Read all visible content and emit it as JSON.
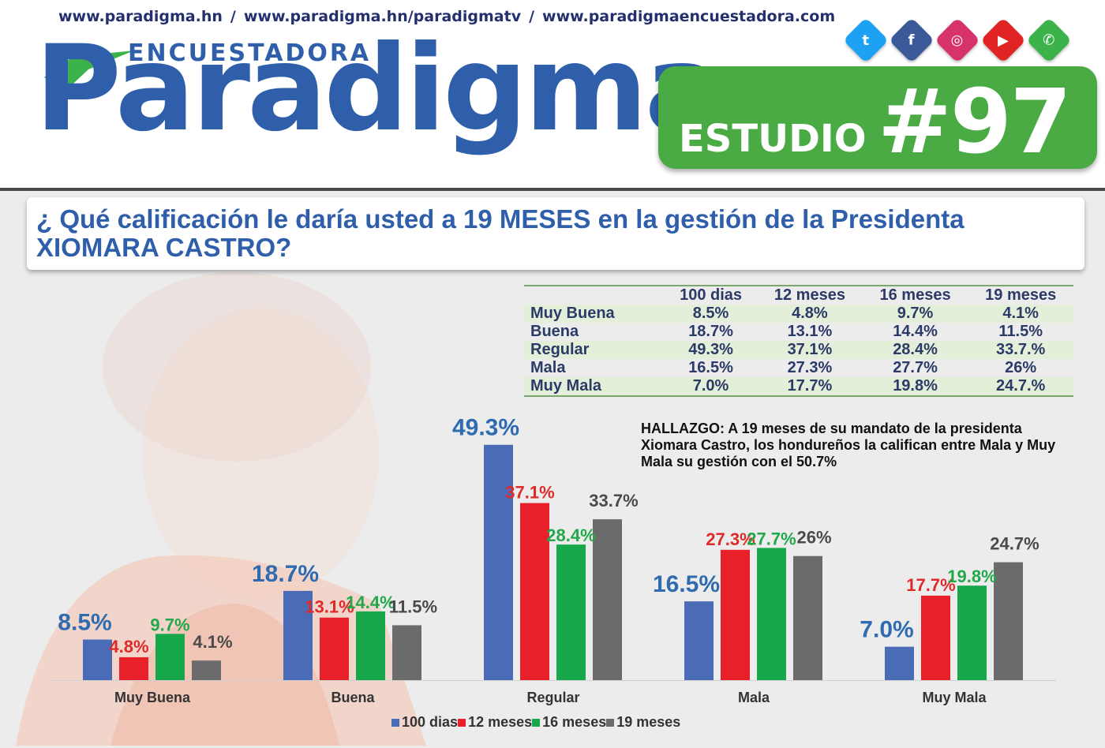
{
  "header": {
    "urls": [
      "www.paradigma.hn",
      "www.paradigma.hn/paradigmatv",
      "www.paradigmaencuestadora.com"
    ],
    "url_separator": "/",
    "logo_sub": "ENCUESTADORA",
    "logo_main": "Paradigma",
    "estudio_label": "ESTUDIO",
    "estudio_number": "#97",
    "social_icons": [
      {
        "name": "twitter-icon",
        "glyph": "t",
        "color": "#1da1f2"
      },
      {
        "name": "facebook-icon",
        "glyph": "f",
        "color": "#3b5998"
      },
      {
        "name": "instagram-icon",
        "glyph": "◎",
        "color": "#d6336c"
      },
      {
        "name": "youtube-icon",
        "glyph": "▶",
        "color": "#e02424"
      },
      {
        "name": "whatsapp-icon",
        "glyph": "✆",
        "color": "#3cb34a"
      }
    ]
  },
  "question": "¿ Qué calificación le daría usted a 19 MESES en la gestión de la Presidenta XIOMARA CASTRO?",
  "table": {
    "columns": [
      "",
      "100 dias",
      "12 meses",
      "16 meses",
      "19 meses"
    ],
    "rows": [
      [
        "Muy Buena",
        "8.5%",
        "4.8%",
        "9.7%",
        "4.1%"
      ],
      [
        "Buena",
        "18.7%",
        "13.1%",
        "14.4%",
        "11.5%"
      ],
      [
        "Regular",
        "49.3%",
        "37.1%",
        "28.4%",
        "33.7.%"
      ],
      [
        "Mala",
        "16.5%",
        "27.3%",
        "27.7%",
        "26%"
      ],
      [
        "Muy Mala",
        "7.0%",
        "17.7%",
        "19.8%",
        "24.7.%"
      ]
    ]
  },
  "hallazgo": "HALLAZGO: A 19 meses de su mandato de la presidenta Xiomara Castro, los hondureños la califican entre Mala y Muy Mala su gestión con el 50.7%",
  "chart_data": {
    "type": "bar",
    "categories": [
      "Muy Buena",
      "Buena",
      "Regular",
      "Mala",
      "Muy Mala"
    ],
    "series": [
      {
        "name": "100 dias",
        "color": "#4a6bb5",
        "label_color": "#2f6bb0",
        "values": [
          8.5,
          18.7,
          49.3,
          16.5,
          7.0
        ],
        "labels": [
          "8.5%",
          "18.7%",
          "49.3%",
          "16.5%",
          "7.0%"
        ]
      },
      {
        "name": "12 meses",
        "color": "#e8202a",
        "label_color": "#e02a2a",
        "values": [
          4.8,
          13.1,
          37.1,
          27.3,
          17.7
        ],
        "labels": [
          "4.8%",
          "13.1%",
          "37.1%",
          "27.3%",
          "17.7%"
        ]
      },
      {
        "name": "16 meses",
        "color": "#16a84a",
        "label_color": "#22a84a",
        "values": [
          9.7,
          14.4,
          28.4,
          27.7,
          19.8
        ],
        "labels": [
          "9.7%",
          "14.4%",
          "28.4%",
          "27.7%",
          "19.8%"
        ]
      },
      {
        "name": "19 meses",
        "color": "#6b6b6b",
        "label_color": "#4a4a4a",
        "values": [
          4.1,
          11.5,
          33.7,
          26,
          24.7
        ],
        "labels": [
          "4.1%",
          "11.5%",
          "33.7%",
          "26%",
          "24.7%"
        ]
      }
    ],
    "ylim": [
      0,
      50
    ],
    "legend_position": "bottom-center"
  }
}
